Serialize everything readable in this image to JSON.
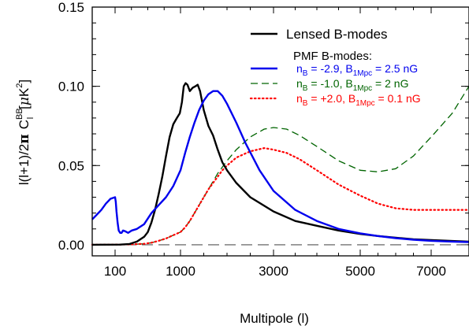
{
  "chart_data": {
    "type": "line",
    "xlabel": "Multipole (l)",
    "ylabel": {
      "prefix": "l(l+1)/2",
      "pi": "π",
      "c": "C",
      "c_sup": "BB",
      "c_sub": "l",
      "unit_open": "[",
      "unit_mu": "μ",
      "unit_k": "K",
      "unit_exp": "2",
      "unit_close": "]"
    },
    "xlim": [
      50,
      7900
    ],
    "ylim": [
      -0.007,
      0.15
    ],
    "xtick_values": [
      100,
      1000,
      3000,
      5000,
      7000
    ],
    "xticks": [
      "100",
      "1000",
      "3000",
      "5000",
      "7000"
    ],
    "ytick_values": [
      0.0,
      0.05,
      0.1,
      0.15
    ],
    "yticks": [
      "0.00",
      "0.05",
      "0.10",
      "0.15"
    ],
    "x_scale_note": "non-linear multipole axis",
    "legend": {
      "position": "top-right",
      "header": "PMF B-modes:",
      "entries": [
        {
          "key": "lensed",
          "text": "Lensed B-modes"
        },
        {
          "key": "pmf1",
          "nB": "-2.9",
          "B1": "2.5"
        },
        {
          "key": "pmf2",
          "nB": "-1.0",
          "B1": "2"
        },
        {
          "key": "pmf3",
          "nB": "+2.0",
          "B1": "0.1"
        }
      ],
      "n_sym": "n",
      "n_sub": "B",
      "b_sym": "B",
      "b_sub": "1Mpc",
      "unit": "nG"
    },
    "colors": {
      "lensed": "#000000",
      "pmf1": "#0000ee",
      "pmf2": "#006400",
      "pmf3": "#ff0000",
      "zero": "#555555"
    },
    "series": [
      {
        "key": "lensed",
        "name": "Lensed B-modes",
        "style": "solid",
        "points": [
          [
            50,
            0.0
          ],
          [
            170,
            0.0001
          ],
          [
            300,
            0.0005
          ],
          [
            400,
            0.002
          ],
          [
            500,
            0.005
          ],
          [
            550,
            0.008
          ],
          [
            600,
            0.014
          ],
          [
            650,
            0.022
          ],
          [
            700,
            0.032
          ],
          [
            750,
            0.043
          ],
          [
            800,
            0.056
          ],
          [
            850,
            0.068
          ],
          [
            900,
            0.076
          ],
          [
            950,
            0.08
          ],
          [
            990,
            0.083
          ],
          [
            1030,
            0.09
          ],
          [
            1070,
            0.1
          ],
          [
            1110,
            0.102
          ],
          [
            1150,
            0.101
          ],
          [
            1200,
            0.097
          ],
          [
            1260,
            0.099
          ],
          [
            1320,
            0.1
          ],
          [
            1370,
            0.101
          ],
          [
            1420,
            0.097
          ],
          [
            1500,
            0.085
          ],
          [
            1600,
            0.075
          ],
          [
            1700,
            0.069
          ],
          [
            1800,
            0.06
          ],
          [
            1900,
            0.052
          ],
          [
            2000,
            0.047
          ],
          [
            2200,
            0.039
          ],
          [
            2500,
            0.03
          ],
          [
            3000,
            0.021
          ],
          [
            3500,
            0.015
          ],
          [
            4000,
            0.012
          ],
          [
            4500,
            0.009
          ],
          [
            5000,
            0.0068
          ],
          [
            5500,
            0.0055
          ],
          [
            6000,
            0.0045
          ],
          [
            6500,
            0.0035
          ],
          [
            7000,
            0.003
          ],
          [
            7500,
            0.0024
          ],
          [
            7900,
            0.002
          ]
        ]
      },
      {
        "key": "pmf1",
        "name": "n_B = -2.9, B_1Mpc = 2.5 nG",
        "style": "solid",
        "points": [
          [
            50,
            0.016
          ],
          [
            60,
            0.019
          ],
          [
            70,
            0.022
          ],
          [
            80,
            0.026
          ],
          [
            90,
            0.029
          ],
          [
            100,
            0.03
          ],
          [
            110,
            0.027
          ],
          [
            120,
            0.021
          ],
          [
            135,
            0.014
          ],
          [
            150,
            0.009
          ],
          [
            170,
            0.0075
          ],
          [
            190,
            0.0075
          ],
          [
            210,
            0.009
          ],
          [
            240,
            0.0085
          ],
          [
            280,
            0.0075
          ],
          [
            330,
            0.009
          ],
          [
            400,
            0.01
          ],
          [
            500,
            0.013
          ],
          [
            600,
            0.02
          ],
          [
            700,
            0.025
          ],
          [
            800,
            0.03
          ],
          [
            900,
            0.037
          ],
          [
            1000,
            0.047
          ],
          [
            1100,
            0.058
          ],
          [
            1200,
            0.068
          ],
          [
            1300,
            0.077
          ],
          [
            1400,
            0.085
          ],
          [
            1500,
            0.091
          ],
          [
            1600,
            0.095
          ],
          [
            1700,
            0.097
          ],
          [
            1800,
            0.097
          ],
          [
            1900,
            0.094
          ],
          [
            2000,
            0.089
          ],
          [
            2200,
            0.077
          ],
          [
            2400,
            0.064
          ],
          [
            2700,
            0.047
          ],
          [
            3000,
            0.034
          ],
          [
            3500,
            0.022
          ],
          [
            4000,
            0.015
          ],
          [
            4500,
            0.01
          ],
          [
            5000,
            0.0072
          ],
          [
            5500,
            0.0055
          ],
          [
            6000,
            0.0042
          ],
          [
            6500,
            0.0032
          ],
          [
            7000,
            0.0025
          ],
          [
            7500,
            0.002
          ],
          [
            7900,
            0.0017
          ]
        ]
      },
      {
        "key": "pmf2",
        "name": "n_B = -1.0, B_1Mpc = 2 nG",
        "style": "dashed",
        "points": [
          [
            50,
            0.0
          ],
          [
            300,
            0.0002
          ],
          [
            500,
            0.0006
          ],
          [
            600,
            0.0013
          ],
          [
            700,
            0.0025
          ],
          [
            800,
            0.004
          ],
          [
            900,
            0.006
          ],
          [
            1000,
            0.008
          ],
          [
            1100,
            0.011
          ],
          [
            1200,
            0.015
          ],
          [
            1300,
            0.02
          ],
          [
            1400,
            0.025
          ],
          [
            1500,
            0.03
          ],
          [
            1600,
            0.035
          ],
          [
            1700,
            0.04
          ],
          [
            1800,
            0.045
          ],
          [
            1900,
            0.049
          ],
          [
            2000,
            0.053
          ],
          [
            2200,
            0.06
          ],
          [
            2500,
            0.068
          ],
          [
            2800,
            0.073
          ],
          [
            3000,
            0.074
          ],
          [
            3300,
            0.073
          ],
          [
            3600,
            0.069
          ],
          [
            4000,
            0.062
          ],
          [
            4500,
            0.053
          ],
          [
            5000,
            0.047
          ],
          [
            5500,
            0.046
          ],
          [
            6000,
            0.048
          ],
          [
            6500,
            0.056
          ],
          [
            7000,
            0.068
          ],
          [
            7500,
            0.083
          ],
          [
            7900,
            0.1
          ]
        ]
      },
      {
        "key": "pmf3",
        "name": "n_B = +2.0, B_1Mpc = 0.1 nG",
        "style": "dotted",
        "points": [
          [
            50,
            0.0
          ],
          [
            300,
            0.0002
          ],
          [
            500,
            0.0006
          ],
          [
            600,
            0.0013
          ],
          [
            700,
            0.0025
          ],
          [
            800,
            0.004
          ],
          [
            900,
            0.006
          ],
          [
            1000,
            0.008
          ],
          [
            1100,
            0.011
          ],
          [
            1200,
            0.015
          ],
          [
            1300,
            0.02
          ],
          [
            1400,
            0.025
          ],
          [
            1500,
            0.03
          ],
          [
            1600,
            0.035
          ],
          [
            1700,
            0.039
          ],
          [
            1800,
            0.043
          ],
          [
            1900,
            0.047
          ],
          [
            2000,
            0.05
          ],
          [
            2200,
            0.055
          ],
          [
            2500,
            0.059
          ],
          [
            2800,
            0.061
          ],
          [
            3000,
            0.06
          ],
          [
            3300,
            0.058
          ],
          [
            3600,
            0.054
          ],
          [
            4000,
            0.047
          ],
          [
            4500,
            0.038
          ],
          [
            5000,
            0.031
          ],
          [
            5500,
            0.026
          ],
          [
            6000,
            0.023
          ],
          [
            6500,
            0.022
          ],
          [
            7000,
            0.022
          ],
          [
            7500,
            0.022
          ],
          [
            7900,
            0.022
          ]
        ]
      },
      {
        "key": "zero",
        "name": "",
        "style": "longdash",
        "points": [
          [
            50,
            0.0
          ],
          [
            7900,
            0.0
          ]
        ]
      }
    ]
  }
}
